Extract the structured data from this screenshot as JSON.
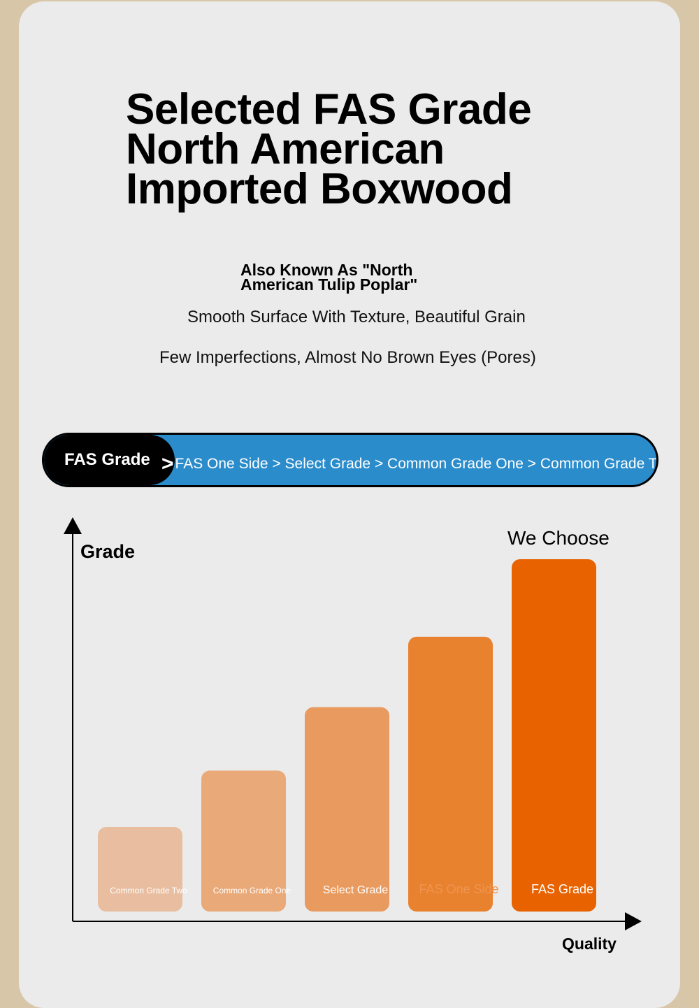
{
  "header": {
    "title_lines": [
      "Selected FAS Grade",
      "North American",
      "Imported Boxwood"
    ],
    "aka_lines": [
      "Also Known As \"North",
      "American Tulip Poplar\""
    ],
    "features": [
      "Smooth Surface With Texture, Beautiful Grain",
      "Few Imperfections, Almost No Brown Eyes (Pores)"
    ]
  },
  "ranking_bar": {
    "current": "FAS Grade",
    "arrow": ">",
    "sequence": "FAS One Side > Select Grade > Common Grade One > Common Grade Two",
    "color": "#2b8ccc"
  },
  "chart_data": {
    "type": "bar",
    "title": "",
    "ylabel": "Grade",
    "xlabel": "Quality",
    "annotation": "We Choose",
    "categories": [
      "Common Grade Two",
      "Common Grade One",
      "Select Grade",
      "FAS One Side",
      "FAS Grade"
    ],
    "values": [
      1.2,
      2.0,
      2.9,
      3.9,
      5.0
    ],
    "colors": [
      "#e9bea0",
      "#e9a978",
      "#e99a5f",
      "#e9822f",
      "#e86200"
    ],
    "ylim": [
      0,
      5.0
    ],
    "grid": false,
    "legend": "none"
  }
}
